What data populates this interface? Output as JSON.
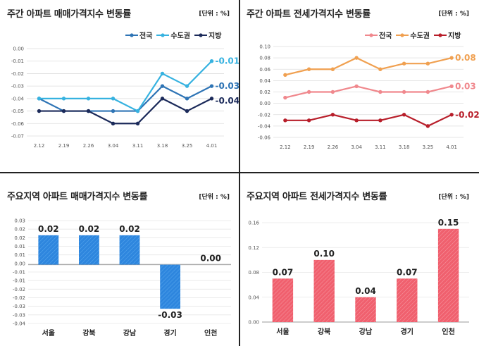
{
  "panels": {
    "p1": {
      "title": "주간 아파트 매매가격지수 변동률",
      "unit": "[단위 : %]"
    },
    "p2": {
      "title": "주간 아파트 전세가격지수 변동률",
      "unit": "[단위 : %]"
    },
    "p3": {
      "title": "주요지역 아파트 매매가격지수 변동률",
      "unit": "[단위 : %]"
    },
    "p4": {
      "title": "주요지역 아파트 전세가격지수 변동률",
      "unit": "[단위 : %]"
    }
  },
  "chart_data": [
    {
      "type": "line",
      "title": "주간 아파트 매매가격지수 변동률",
      "unit": "[단위 : %]",
      "x": [
        "2.12",
        "2.19",
        "2.26",
        "3.04",
        "3.11",
        "3.18",
        "3.25",
        "4.01"
      ],
      "ylim": [
        -0.07,
        0.0
      ],
      "yticks": [
        "0.00",
        "-0.01",
        "-0.02",
        "-0.03",
        "-0.04",
        "-0.05",
        "-0.06",
        "-0.07"
      ],
      "grid": true,
      "legend": "top-right",
      "series": [
        {
          "name": "전국",
          "color": "#2e74b5",
          "values": [
            -0.04,
            -0.05,
            -0.05,
            -0.05,
            -0.05,
            -0.03,
            -0.04,
            -0.03
          ],
          "end_label": "-0.03"
        },
        {
          "name": "수도권",
          "color": "#36b2e0",
          "values": [
            -0.04,
            -0.04,
            -0.04,
            -0.04,
            -0.05,
            -0.02,
            -0.03,
            -0.01
          ],
          "end_label": "-0.01"
        },
        {
          "name": "지방",
          "color": "#1b2a5a",
          "values": [
            -0.05,
            -0.05,
            -0.05,
            -0.06,
            -0.06,
            -0.04,
            -0.05,
            -0.04
          ],
          "end_label": "-0.04"
        }
      ]
    },
    {
      "type": "line",
      "title": "주간 아파트 전세가격지수 변동률",
      "unit": "[단위 : %]",
      "x": [
        "2.12",
        "2.19",
        "2.26",
        "3.04",
        "3.11",
        "3.18",
        "3.25",
        "4.01"
      ],
      "ylim": [
        -0.06,
        0.1
      ],
      "yticks": [
        "0.10",
        "0.08",
        "0.06",
        "0.04",
        "0.02",
        "0.00",
        "-0.02",
        "-0.04",
        "-0.06"
      ],
      "grid": true,
      "legend": "top-right",
      "series": [
        {
          "name": "전국",
          "color": "#f0888d",
          "values": [
            0.01,
            0.02,
            0.02,
            0.03,
            0.02,
            0.02,
            0.02,
            0.03
          ],
          "end_label": "0.03"
        },
        {
          "name": "수도권",
          "color": "#f0a050",
          "values": [
            0.05,
            0.06,
            0.06,
            0.08,
            0.06,
            0.07,
            0.07,
            0.08
          ],
          "end_label": "0.08"
        },
        {
          "name": "지방",
          "color": "#b81e2a",
          "values": [
            -0.03,
            -0.03,
            -0.02,
            -0.03,
            -0.03,
            -0.02,
            -0.04,
            -0.02
          ],
          "end_label": "-0.02"
        }
      ]
    },
    {
      "type": "bar",
      "title": "주요지역 아파트 매매가격지수 변동률",
      "unit": "[단위 : %]",
      "categories": [
        "서울",
        "강북",
        "강남",
        "경기",
        "인천"
      ],
      "values": [
        0.02,
        0.02,
        0.02,
        -0.03,
        0.0
      ],
      "labels": [
        "0.02",
        "0.02",
        "0.02",
        "-0.03",
        "0.00"
      ],
      "ylim": [
        -0.04,
        0.03
      ],
      "yticks": [
        "0.03",
        "0.02",
        "0.02",
        "0.01",
        "0.01",
        "0.00",
        "-0.01",
        "-0.01",
        "-0.02",
        "-0.02",
        "-0.03",
        "-0.03",
        "-0.04"
      ],
      "color": "#2e86de"
    },
    {
      "type": "bar",
      "title": "주요지역 아파트 전세가격지수 변동률",
      "unit": "[단위 : %]",
      "categories": [
        "서울",
        "강북",
        "강남",
        "경기",
        "인천"
      ],
      "values": [
        0.07,
        0.1,
        0.04,
        0.07,
        0.15
      ],
      "labels": [
        "0.07",
        "0.10",
        "0.04",
        "0.07",
        "0.15"
      ],
      "ylim": [
        0.0,
        0.16
      ],
      "yticks": [
        "0.16",
        "0.12",
        "0.08",
        "0.04",
        "0.00"
      ],
      "color": "#f0606e"
    }
  ]
}
